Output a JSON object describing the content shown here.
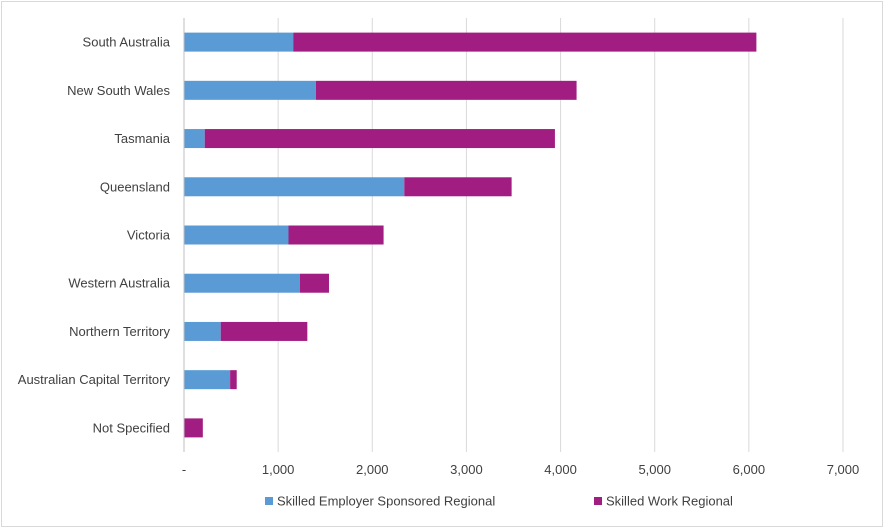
{
  "chart_data": {
    "type": "bar",
    "orientation": "horizontal",
    "stacked": true,
    "categories": [
      "South Australia",
      "New South Wales",
      "Tasmania",
      "Queensland",
      "Victoria",
      "Western Australia",
      "Northern Territory",
      "Australian Capital Territory",
      "Not Specified"
    ],
    "series": [
      {
        "name": "Skilled Employer Sponsored Regional",
        "color": "#5b9bd5",
        "values": [
          1160,
          1400,
          220,
          2340,
          1110,
          1230,
          390,
          490,
          0
        ]
      },
      {
        "name": "Skilled Work Regional",
        "color": "#a11d82",
        "values": [
          4920,
          2770,
          3720,
          1140,
          1010,
          310,
          920,
          70,
          200
        ]
      }
    ],
    "xlim": [
      0,
      7000
    ],
    "xticks": [
      0,
      1000,
      2000,
      3000,
      4000,
      5000,
      6000,
      7000
    ],
    "xtick_labels": [
      "-",
      "1,000",
      "2,000",
      "3,000",
      "4,000",
      "5,000",
      "6,000",
      "7,000"
    ],
    "grid": "vertical",
    "legend": "bottom",
    "title": "",
    "xlabel": "",
    "ylabel": ""
  }
}
